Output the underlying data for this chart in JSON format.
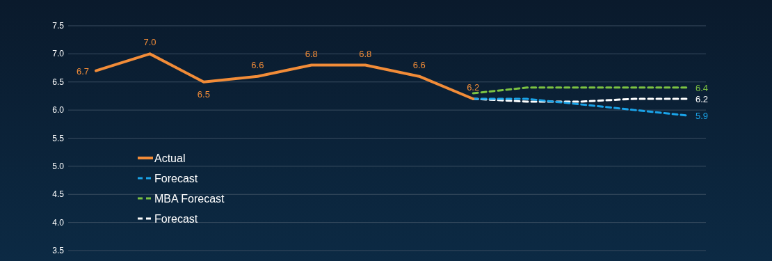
{
  "chart_data": {
    "type": "line",
    "categories": [
      null,
      null,
      null,
      null,
      null,
      null,
      null,
      null,
      null,
      null,
      null,
      null
    ],
    "ylim": [
      3.5,
      7.5
    ],
    "yticks": [
      {
        "value": 3.5,
        "label": "3.5"
      },
      {
        "value": 4,
        "label": "4.0"
      },
      {
        "value": 4.5,
        "label": "4.5"
      },
      {
        "value": 5,
        "label": "5.0"
      },
      {
        "value": 5.5,
        "label": "5.5"
      },
      {
        "value": 6,
        "label": "6.0"
      },
      {
        "value": 6.5,
        "label": "6.5"
      },
      {
        "value": 7,
        "label": "7.0"
      },
      {
        "value": 7.5,
        "label": "7.5"
      }
    ],
    "grid": "y",
    "legend": "bottom left",
    "series": [
      {
        "name": "Actual",
        "color": "#f28c38",
        "line_style": "solid",
        "values": [
          6.7,
          7.0,
          6.5,
          6.6,
          6.8,
          6.8,
          6.6,
          6.2,
          null,
          null,
          null,
          null
        ],
        "value_labels": [
          "6.7",
          "7.0",
          "6.5",
          "6.6",
          "6.8",
          "6.8",
          "6.6",
          "6.2",
          null,
          null,
          null,
          null
        ]
      },
      {
        "name": "Forecast",
        "color": "#1aa3e8",
        "line_style": "dashed",
        "values": [
          null,
          null,
          null,
          null,
          null,
          null,
          null,
          6.2,
          6.2,
          6.1,
          6.0,
          5.9
        ],
        "value_labels": [
          null,
          null,
          null,
          null,
          null,
          null,
          null,
          null,
          null,
          null,
          null,
          "5.9"
        ]
      },
      {
        "name": "MBA Forecast",
        "color": "#7cc242",
        "line_style": "dashed",
        "values": [
          null,
          null,
          null,
          null,
          null,
          null,
          null,
          6.3,
          6.4,
          6.4,
          6.4,
          6.4
        ],
        "value_labels": [
          null,
          null,
          null,
          null,
          null,
          null,
          null,
          null,
          null,
          null,
          null,
          "6.4"
        ]
      },
      {
        "name": "Forecast",
        "color": "#ffffff",
        "line_style": "dashed",
        "values": [
          null,
          null,
          null,
          null,
          null,
          null,
          null,
          6.2,
          6.15,
          6.15,
          6.2,
          6.2
        ],
        "value_labels": [
          null,
          null,
          null,
          null,
          null,
          null,
          null,
          null,
          null,
          null,
          null,
          "6.2"
        ]
      }
    ]
  }
}
